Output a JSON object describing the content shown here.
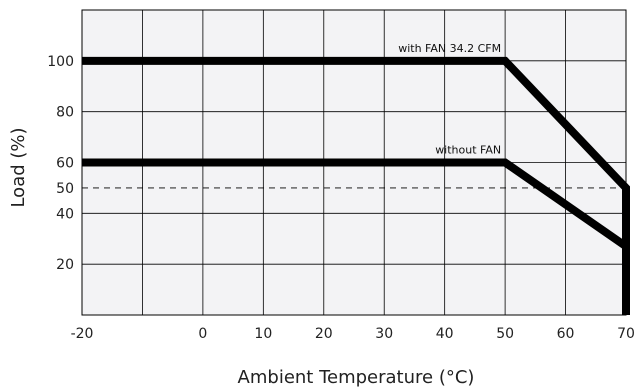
{
  "chart_data": {
    "type": "line",
    "title": "",
    "xlabel": "Ambient Temperature (°C)",
    "ylabel": "Load (%)",
    "xlim": [
      -20,
      70
    ],
    "ylim": [
      0,
      120
    ],
    "x_ticks": [
      -20,
      0,
      10,
      20,
      30,
      40,
      50,
      60,
      70
    ],
    "y_ticks": [
      20,
      40,
      50,
      60,
      80,
      100
    ],
    "grid": true,
    "series": [
      {
        "name": "with FAN 34.2 CFM",
        "x": [
          -20,
          50,
          70,
          70
        ],
        "y": [
          100,
          100,
          50,
          0
        ]
      },
      {
        "name": "without FAN",
        "x": [
          -20,
          50,
          70
        ],
        "y": [
          60,
          60,
          27
        ]
      }
    ],
    "reference_lines": [
      {
        "y": 50,
        "style": "dashed"
      }
    ],
    "colors": {
      "line": "#000000",
      "plot_fill": "#f3f3f5",
      "grid": "#000000"
    }
  }
}
